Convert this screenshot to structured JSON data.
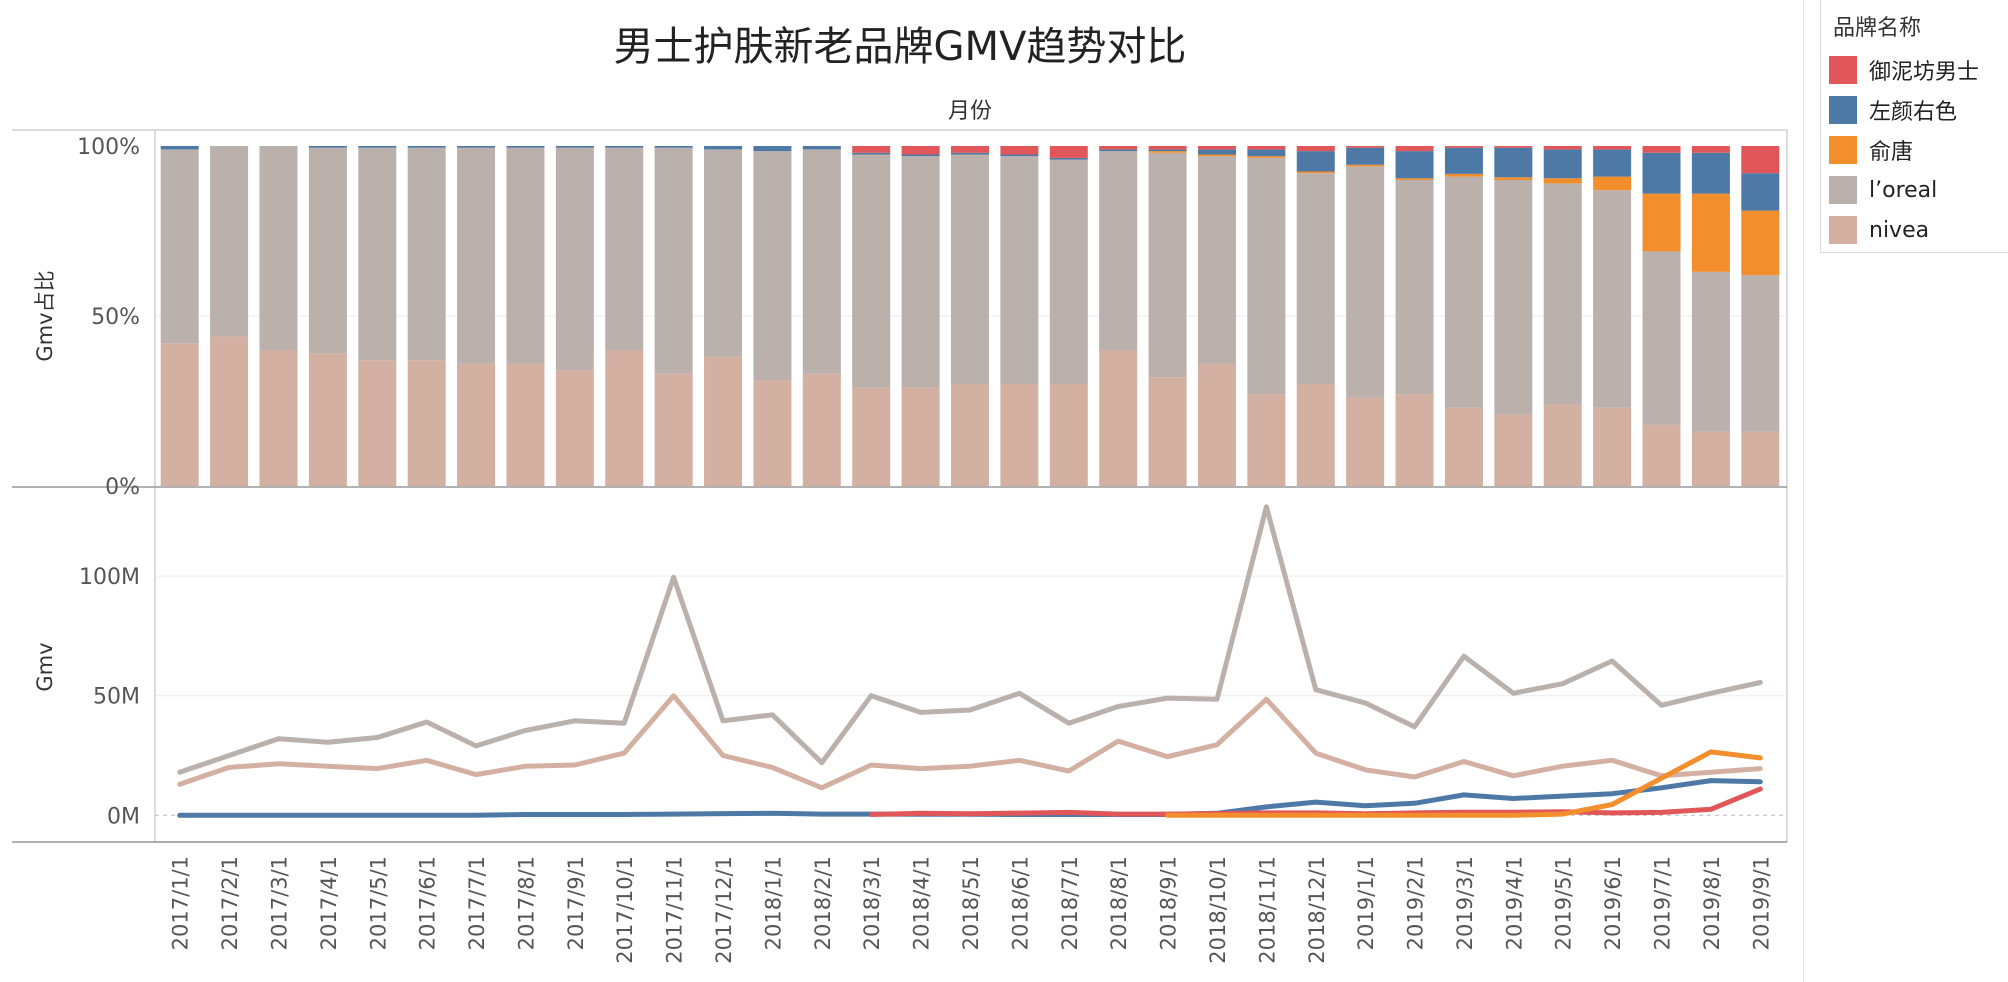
{
  "title": "男士护肤新老品牌GMV趋势对比",
  "colors": {
    "yunifang": "#e15759",
    "zuoyan": "#4e79a7",
    "yutang": "#f28e2b",
    "loreal": "#bab0ac",
    "nivea": "#d4b0a3"
  },
  "legend": {
    "title": "品牌名称",
    "items": [
      {
        "label": "御泥坊男士",
        "color_key": "yunifang"
      },
      {
        "label": "左颜右色",
        "color_key": "zuoyan"
      },
      {
        "label": "俞唐",
        "color_key": "yutang"
      },
      {
        "label": "l’oreal",
        "color_key": "loreal"
      },
      {
        "label": "nivea",
        "color_key": "nivea"
      }
    ]
  },
  "chart_data": {
    "type": "bar",
    "x_header": "月份",
    "categories": [
      "2017/1/1",
      "2017/2/1",
      "2017/3/1",
      "2017/4/1",
      "2017/5/1",
      "2017/6/1",
      "2017/7/1",
      "2017/8/1",
      "2017/9/1",
      "2017/10/1",
      "2017/11/1",
      "2017/12/1",
      "2018/1/1",
      "2018/2/1",
      "2018/3/1",
      "2018/4/1",
      "2018/5/1",
      "2018/6/1",
      "2018/7/1",
      "2018/8/1",
      "2018/9/1",
      "2018/10/1",
      "2018/11/1",
      "2018/12/1",
      "2019/1/1",
      "2019/2/1",
      "2019/3/1",
      "2019/4/1",
      "2019/5/1",
      "2019/6/1",
      "2019/7/1",
      "2019/8/1",
      "2019/9/1"
    ],
    "panels": [
      {
        "type": "stacked-bar-100",
        "ylabel": "Gmv占比",
        "ylim": [
          0,
          100
        ],
        "yticks": [
          {
            "v": 100,
            "label": "100%"
          },
          {
            "v": 50,
            "label": "50%"
          },
          {
            "v": 0,
            "label": "0%"
          }
        ],
        "series": [
          {
            "name": "nivea",
            "color_key": "nivea",
            "values": [
              42,
              44,
              40,
              39,
              37,
              37,
              36,
              36,
              34,
              40,
              33,
              38,
              31,
              33,
              29,
              29,
              30,
              30,
              30,
              40,
              32,
              36,
              27,
              30,
              26,
              27,
              23,
              21,
              24,
              23,
              18,
              16,
              16
            ]
          },
          {
            "name": "l’oreal",
            "color_key": "loreal",
            "values": [
              57,
              56,
              60,
              60.5,
              62.5,
              62.5,
              63.5,
              63.5,
              65.5,
              59.5,
              66.5,
              61,
              67.5,
              66,
              68.5,
              68,
              67.5,
              67,
              66,
              58.5,
              66,
              61,
              69.5,
              62,
              68,
              63,
              68,
              69,
              65,
              64,
              51,
              47,
              46
            ]
          },
          {
            "name": "俞唐",
            "color_key": "yutang",
            "values": [
              0,
              0,
              0,
              0,
              0,
              0,
              0,
              0,
              0,
              0,
              0,
              0,
              0,
              0,
              0,
              0,
              0,
              0,
              0,
              0,
              0.5,
              0.5,
              0.5,
              0.5,
              0.5,
              0.5,
              0.8,
              0.8,
              1.5,
              4,
              17,
              23,
              19
            ]
          },
          {
            "name": "左颜右色",
            "color_key": "zuoyan",
            "values": [
              1,
              0,
              0,
              0.5,
              0.5,
              0.5,
              0.5,
              0.5,
              0.5,
              0.5,
              0.5,
              1,
              1.5,
              1,
              0.5,
              0.5,
              0.5,
              0.5,
              0.5,
              0.5,
              0.5,
              1.5,
              2,
              6,
              5,
              8,
              7.7,
              8.7,
              8.5,
              8,
              12,
              12,
              11
            ]
          },
          {
            "name": "御泥坊男士",
            "color_key": "yunifang",
            "values": [
              0,
              0,
              0,
              0,
              0,
              0,
              0,
              0,
              0,
              0,
              0,
              0,
              0,
              0,
              2,
              2.5,
              2,
              2.5,
              3.5,
              1,
              1,
              1,
              1,
              1.5,
              0.5,
              1.5,
              0.5,
              0.5,
              1,
              1,
              2,
              2,
              8
            ]
          }
        ]
      },
      {
        "type": "line",
        "ylabel": "Gmv",
        "ylim": [
          -7,
          131
        ],
        "yticks": [
          {
            "v": 100,
            "label": "100M"
          },
          {
            "v": 50,
            "label": "50M"
          },
          {
            "v": 0,
            "label": "0M"
          }
        ],
        "unit": "M",
        "series": [
          {
            "name": "l’oreal",
            "color_key": "loreal",
            "values": [
              18,
              25,
              32,
              30.5,
              32.5,
              39,
              29,
              35.5,
              39.5,
              38.5,
              99.5,
              39.5,
              42,
              22,
              50,
              43,
              44,
              51,
              38.5,
              45.5,
              49,
              48.5,
              129,
              52.5,
              47,
              37,
              66.5,
              51,
              55,
              64.5,
              46,
              51,
              55.5
            ]
          },
          {
            "name": "nivea",
            "color_key": "nivea",
            "values": [
              13,
              20,
              21.5,
              20.5,
              19.5,
              23,
              17,
              20.5,
              21,
              26,
              50,
              25,
              20,
              11.5,
              21,
              19.5,
              20.5,
              23,
              18.5,
              31,
              24.5,
              29.5,
              48.5,
              26,
              19,
              16,
              22.5,
              16.5,
              20.5,
              23,
              16.5,
              18,
              19.5
            ]
          },
          {
            "name": "左颜右色",
            "color_key": "zuoyan",
            "values": [
              0,
              0,
              0,
              0,
              0,
              0,
              0,
              0.3,
              0.3,
              0.3,
              0.5,
              0.7,
              0.8,
              0.5,
              0.5,
              0.4,
              0.4,
              0.3,
              0.3,
              0.3,
              0.3,
              0.8,
              3.5,
              5.5,
              4,
              5,
              8.5,
              7,
              8,
              9,
              11.5,
              14.5,
              14
            ]
          },
          {
            "name": "御泥坊男士",
            "color_key": "yunifang",
            "values": [
              null,
              null,
              null,
              null,
              null,
              null,
              null,
              null,
              null,
              null,
              null,
              null,
              null,
              null,
              0.3,
              0.8,
              0.6,
              0.9,
              1.2,
              0.5,
              0.5,
              0.7,
              1,
              1,
              0.6,
              1,
              1.3,
              1.3,
              1.5,
              1,
              1.2,
              2.5,
              11
            ]
          },
          {
            "name": "俞唐",
            "color_key": "yutang",
            "values": [
              null,
              null,
              null,
              null,
              null,
              null,
              null,
              null,
              null,
              null,
              null,
              null,
              null,
              null,
              null,
              null,
              null,
              null,
              null,
              null,
              0,
              0,
              0,
              0,
              0,
              0,
              0,
              0,
              0.5,
              4.5,
              15.5,
              26.5,
              24
            ]
          }
        ]
      }
    ]
  }
}
